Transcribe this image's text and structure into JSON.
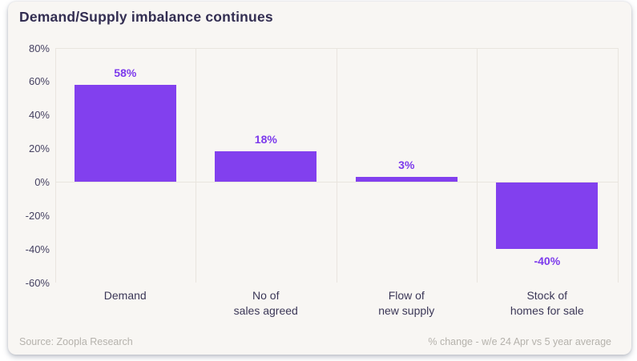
{
  "header": {
    "title": "Demand/Supply imbalance continues"
  },
  "footer": {
    "source": "Source: Zoopla Research",
    "note": "% change - w/e 24 Apr vs 5 year average"
  },
  "colors": {
    "card_background": "#f8f6f3",
    "bar": "#8240ee",
    "value_label": "#7c3aec",
    "title_text": "#332e52",
    "axis_text": "#454161",
    "gridline": "#e9e5df",
    "footer_text": "#b5b2ac"
  },
  "chart_data": {
    "type": "bar",
    "title": "Demand/Supply imbalance continues",
    "categories": [
      "Demand",
      "No of\nsales agreed",
      "Flow of\nnew supply",
      "Stock of\nhomes for sale"
    ],
    "values": [
      58,
      18,
      3,
      -40
    ],
    "value_labels": [
      "58%",
      "18%",
      "3%",
      "-40%"
    ],
    "xlabel": "",
    "ylabel": "",
    "ylim": [
      -60,
      80
    ],
    "ytick_step": 20,
    "ytick_labels": [
      "80%",
      "60%",
      "40%",
      "20%",
      "0%",
      "-20%",
      "-40%",
      "-60%"
    ],
    "grid": "vertical category separators; horizontal lines at top (80%) and zero",
    "legend_position": "none",
    "value_label_position": "outside end of bar (above positive, below negative)",
    "footnote": "% change - w/e 24 Apr vs 5 year average",
    "source": "Source: Zoopla Research"
  }
}
